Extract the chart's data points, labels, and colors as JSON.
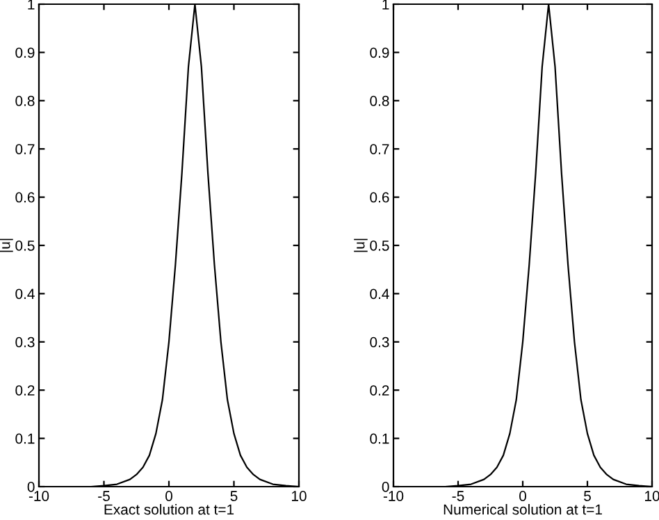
{
  "chart_data": [
    {
      "type": "line",
      "xlabel": "Exact solution at t=1",
      "ylabel": "|u|",
      "x": [
        -6,
        -5,
        -4,
        -3,
        -2.5,
        -2,
        -1.5,
        -1,
        -0.5,
        0,
        0.5,
        1,
        1.5,
        2,
        2.5,
        3,
        3.5,
        4,
        4.5,
        5,
        5.5,
        6,
        6.5,
        7,
        8,
        9,
        10
      ],
      "series": [
        {
          "color": "#000000",
          "values": [
            0,
            0.002,
            0.005,
            0.015,
            0.025,
            0.04,
            0.065,
            0.11,
            0.18,
            0.3,
            0.46,
            0.65,
            0.87,
            1,
            0.87,
            0.65,
            0.46,
            0.3,
            0.18,
            0.11,
            0.065,
            0.04,
            0.025,
            0.015,
            0.005,
            0.002,
            0
          ]
        }
      ],
      "xlim": [
        -10,
        10
      ],
      "ylim": [
        0,
        1
      ],
      "xticks": [
        -10,
        -5,
        0,
        5,
        10
      ],
      "yticks": [
        0,
        0.1,
        0.2,
        0.3,
        0.4,
        0.5,
        0.6,
        0.7,
        0.8,
        0.9,
        1
      ],
      "grid": false,
      "legend": false
    },
    {
      "type": "line",
      "xlabel": "Numerical solution at t=1",
      "ylabel": "|u|",
      "x": [
        -6,
        -5,
        -4,
        -3,
        -2.5,
        -2,
        -1.5,
        -1,
        -0.5,
        0,
        0.5,
        1,
        1.5,
        2,
        2.5,
        3,
        3.5,
        4,
        4.5,
        5,
        5.5,
        6,
        6.5,
        7,
        8,
        9,
        10
      ],
      "series": [
        {
          "color": "#000000",
          "values": [
            0,
            0.002,
            0.005,
            0.015,
            0.025,
            0.04,
            0.065,
            0.11,
            0.18,
            0.3,
            0.46,
            0.65,
            0.87,
            1,
            0.87,
            0.65,
            0.46,
            0.3,
            0.18,
            0.11,
            0.065,
            0.04,
            0.025,
            0.015,
            0.005,
            0.002,
            0
          ]
        }
      ],
      "xlim": [
        -10,
        10
      ],
      "ylim": [
        0,
        1
      ],
      "xticks": [
        -10,
        -5,
        0,
        5,
        10
      ],
      "yticks": [
        0,
        0.1,
        0.2,
        0.3,
        0.4,
        0.5,
        0.6,
        0.7,
        0.8,
        0.9,
        1
      ],
      "grid": false,
      "legend": false
    }
  ]
}
